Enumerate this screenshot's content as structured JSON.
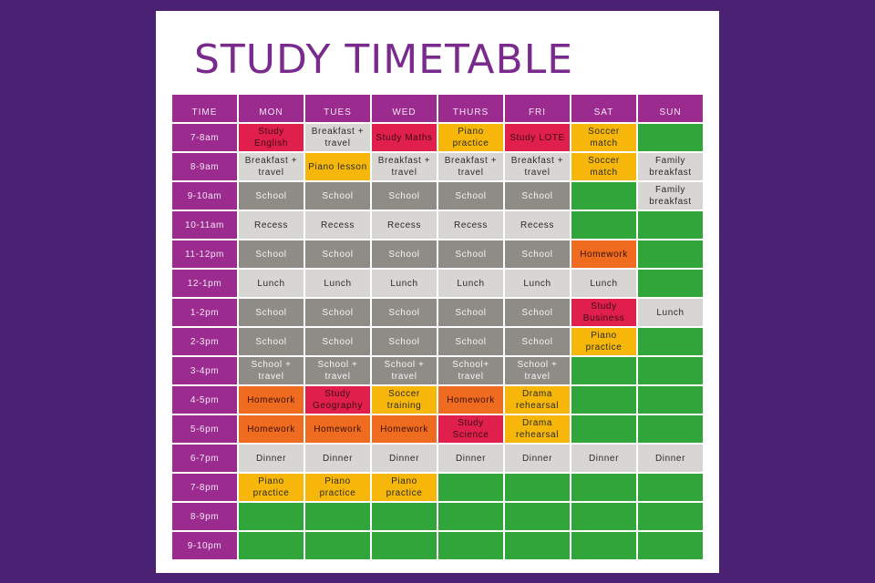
{
  "title": "STUDY TIMETABLE",
  "colors": {
    "background": "#4b2173",
    "header": "#9b2b8f",
    "free": "#2fa53a",
    "routine": "#d8d6d3",
    "school": "#8f8c88",
    "study": "#e01f4d",
    "activity": "#f6b70a",
    "homework": "#ee6b20"
  },
  "headers": [
    "TIME",
    "MON",
    "TUES",
    "WED",
    "THURS",
    "FRI",
    "SAT",
    "SUN"
  ],
  "rows": [
    {
      "time": "7-8am",
      "cells": [
        {
          "t": "Study English",
          "c": "red"
        },
        {
          "t": "Breakfast + travel",
          "c": "light"
        },
        {
          "t": "Study Maths",
          "c": "red"
        },
        {
          "t": "Piano practice",
          "c": "yellow"
        },
        {
          "t": "Study LOTE",
          "c": "red"
        },
        {
          "t": "Soccer match",
          "c": "yellow"
        },
        {
          "t": "",
          "c": "free"
        }
      ]
    },
    {
      "time": "8-9am",
      "cells": [
        {
          "t": "Breakfast + travel",
          "c": "light"
        },
        {
          "t": "Piano lesson",
          "c": "yellow"
        },
        {
          "t": "Breakfast + travel",
          "c": "light"
        },
        {
          "t": "Breakfast + travel",
          "c": "light"
        },
        {
          "t": "Breakfast + travel",
          "c": "light"
        },
        {
          "t": "Soccer match",
          "c": "yellow"
        },
        {
          "t": "Family breakfast",
          "c": "light"
        }
      ]
    },
    {
      "time": "9-10am",
      "cells": [
        {
          "t": "School",
          "c": "school"
        },
        {
          "t": "School",
          "c": "school"
        },
        {
          "t": "School",
          "c": "school"
        },
        {
          "t": "School",
          "c": "school"
        },
        {
          "t": "School",
          "c": "school"
        },
        {
          "t": "",
          "c": "free"
        },
        {
          "t": "Family breakfast",
          "c": "light"
        }
      ]
    },
    {
      "time": "10-11am",
      "cells": [
        {
          "t": "Recess",
          "c": "light"
        },
        {
          "t": "Recess",
          "c": "light"
        },
        {
          "t": "Recess",
          "c": "light"
        },
        {
          "t": "Recess",
          "c": "light"
        },
        {
          "t": "Recess",
          "c": "light"
        },
        {
          "t": "",
          "c": "free"
        },
        {
          "t": "",
          "c": "free"
        }
      ]
    },
    {
      "time": "11-12pm",
      "cells": [
        {
          "t": "School",
          "c": "school"
        },
        {
          "t": "School",
          "c": "school"
        },
        {
          "t": "School",
          "c": "school"
        },
        {
          "t": "School",
          "c": "school"
        },
        {
          "t": "School",
          "c": "school"
        },
        {
          "t": "Homework",
          "c": "orange"
        },
        {
          "t": "",
          "c": "free"
        }
      ]
    },
    {
      "time": "12-1pm",
      "cells": [
        {
          "t": "Lunch",
          "c": "light"
        },
        {
          "t": "Lunch",
          "c": "light"
        },
        {
          "t": "Lunch",
          "c": "light"
        },
        {
          "t": "Lunch",
          "c": "light"
        },
        {
          "t": "Lunch",
          "c": "light"
        },
        {
          "t": "Lunch",
          "c": "light"
        },
        {
          "t": "",
          "c": "free"
        }
      ]
    },
    {
      "time": "1-2pm",
      "cells": [
        {
          "t": "School",
          "c": "school"
        },
        {
          "t": "School",
          "c": "school"
        },
        {
          "t": "School",
          "c": "school"
        },
        {
          "t": "School",
          "c": "school"
        },
        {
          "t": "School",
          "c": "school"
        },
        {
          "t": "Study Business",
          "c": "red"
        },
        {
          "t": "Lunch",
          "c": "light"
        }
      ]
    },
    {
      "time": "2-3pm",
      "cells": [
        {
          "t": "School",
          "c": "school"
        },
        {
          "t": "School",
          "c": "school"
        },
        {
          "t": "School",
          "c": "school"
        },
        {
          "t": "School",
          "c": "school"
        },
        {
          "t": "School",
          "c": "school"
        },
        {
          "t": "Piano practice",
          "c": "yellow"
        },
        {
          "t": "",
          "c": "free"
        }
      ]
    },
    {
      "time": "3-4pm",
      "cells": [
        {
          "t": "School + travel",
          "c": "school"
        },
        {
          "t": "School + travel",
          "c": "school"
        },
        {
          "t": "School + travel",
          "c": "school"
        },
        {
          "t": "School+ travel",
          "c": "school"
        },
        {
          "t": "School + travel",
          "c": "school"
        },
        {
          "t": "",
          "c": "free"
        },
        {
          "t": "",
          "c": "free"
        }
      ]
    },
    {
      "time": "4-5pm",
      "cells": [
        {
          "t": "Homework",
          "c": "orange"
        },
        {
          "t": "Study Geography",
          "c": "red"
        },
        {
          "t": "Soccer training",
          "c": "yellow"
        },
        {
          "t": "Homework",
          "c": "orange"
        },
        {
          "t": "Drama rehearsal",
          "c": "yellow"
        },
        {
          "t": "",
          "c": "free"
        },
        {
          "t": "",
          "c": "free"
        }
      ]
    },
    {
      "time": "5-6pm",
      "cells": [
        {
          "t": "Homework",
          "c": "orange"
        },
        {
          "t": "Homework",
          "c": "orange"
        },
        {
          "t": "Homework",
          "c": "orange"
        },
        {
          "t": "Study Science",
          "c": "red"
        },
        {
          "t": "Drama rehearsal",
          "c": "yellow"
        },
        {
          "t": "",
          "c": "free"
        },
        {
          "t": "",
          "c": "free"
        }
      ]
    },
    {
      "time": "6-7pm",
      "cells": [
        {
          "t": "Dinner",
          "c": "light"
        },
        {
          "t": "Dinner",
          "c": "light"
        },
        {
          "t": "Dinner",
          "c": "light"
        },
        {
          "t": "Dinner",
          "c": "light"
        },
        {
          "t": "Dinner",
          "c": "light"
        },
        {
          "t": "Dinner",
          "c": "light"
        },
        {
          "t": "Dinner",
          "c": "light"
        }
      ]
    },
    {
      "time": "7-8pm",
      "cells": [
        {
          "t": "Piano practice",
          "c": "yellow"
        },
        {
          "t": "Piano practice",
          "c": "yellow"
        },
        {
          "t": "Piano practice",
          "c": "yellow"
        },
        {
          "t": "",
          "c": "free"
        },
        {
          "t": "",
          "c": "free"
        },
        {
          "t": "",
          "c": "free"
        },
        {
          "t": "",
          "c": "free"
        }
      ]
    },
    {
      "time": "8-9pm",
      "cells": [
        {
          "t": "",
          "c": "free"
        },
        {
          "t": "",
          "c": "free"
        },
        {
          "t": "",
          "c": "free"
        },
        {
          "t": "",
          "c": "free"
        },
        {
          "t": "",
          "c": "free"
        },
        {
          "t": "",
          "c": "free"
        },
        {
          "t": "",
          "c": "free"
        }
      ]
    },
    {
      "time": "9-10pm",
      "cells": [
        {
          "t": "",
          "c": "free"
        },
        {
          "t": "",
          "c": "free"
        },
        {
          "t": "",
          "c": "free"
        },
        {
          "t": "",
          "c": "free"
        },
        {
          "t": "",
          "c": "free"
        },
        {
          "t": "",
          "c": "free"
        },
        {
          "t": "",
          "c": "free"
        }
      ]
    }
  ]
}
